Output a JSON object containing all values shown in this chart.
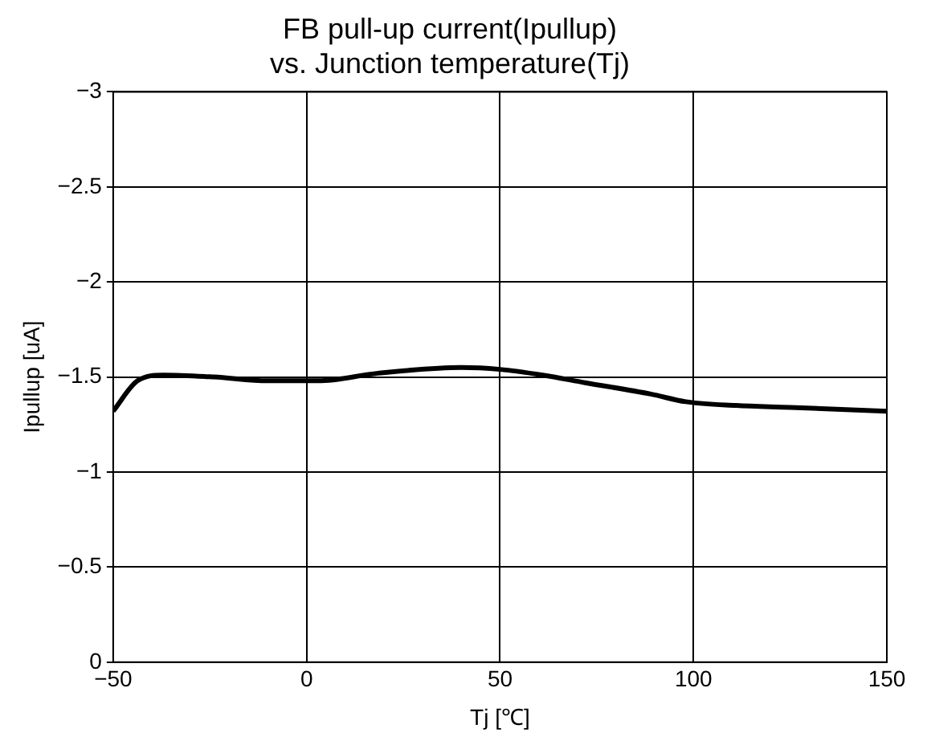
{
  "chart_data": {
    "type": "line",
    "title": "FB pull-up current(Ipullup)\nvs. Junction temperature(Tj)",
    "xlabel": "Tj [℃]",
    "ylabel": "Ipullup [uA]",
    "series": [
      {
        "color": "#000000",
        "x": [
          -50,
          -43.7,
          -37,
          -24,
          -10,
          3,
          18.5,
          40,
          50,
          61,
          72,
          89,
          98,
          111,
          125,
          150
        ],
        "values": [
          -1.32,
          -1.48,
          -1.51,
          -1.5,
          -1.48,
          -1.48,
          -1.52,
          -1.55,
          -1.54,
          -1.51,
          -1.47,
          -1.41,
          -1.37,
          -1.35,
          -1.34,
          -1.32
        ]
      }
    ],
    "xlim": [
      -50,
      150
    ],
    "xticks": [
      {
        "value": -50,
        "label": "−50"
      },
      0,
      50,
      100,
      150
    ],
    "ylim": [
      0,
      -3
    ],
    "yticks": [
      0,
      {
        "value": -0.5,
        "label": "−0.5"
      },
      {
        "value": -1,
        "label": "−1"
      },
      {
        "value": -1.5,
        "label": "−1.5"
      },
      {
        "value": -2,
        "label": "−2"
      },
      {
        "value": -2.5,
        "label": "−2.5"
      },
      {
        "value": -3,
        "label": "−3"
      }
    ],
    "grid": true,
    "legend": false,
    "marker": "none",
    "line_style": "solid"
  }
}
